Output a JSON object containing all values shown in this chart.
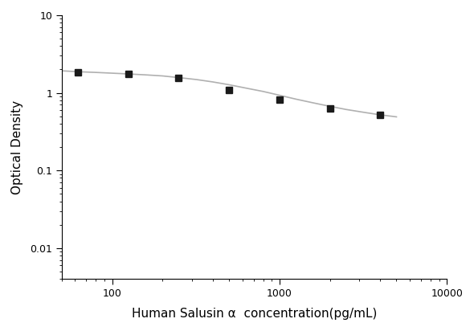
{
  "x_data": [
    62.5,
    125,
    250,
    500,
    1000,
    2000,
    4000
  ],
  "y_data": [
    1.85,
    1.75,
    1.55,
    1.1,
    0.82,
    0.63,
    0.52
  ],
  "curve_x": [
    50,
    62.5,
    80,
    100,
    125,
    160,
    200,
    250,
    320,
    400,
    500,
    630,
    800,
    1000,
    1250,
    1600,
    2000,
    2500,
    3200,
    4000,
    5000
  ],
  "curve_y": [
    1.92,
    1.87,
    1.83,
    1.79,
    1.75,
    1.7,
    1.65,
    1.57,
    1.48,
    1.38,
    1.27,
    1.15,
    1.04,
    0.93,
    0.83,
    0.74,
    0.67,
    0.61,
    0.56,
    0.52,
    0.49
  ],
  "xlabel": "Human Salusin α  concentration(pg/mL)",
  "ylabel": "Optical Density",
  "xlim": [
    50,
    10000
  ],
  "ylim": [
    0.004,
    10
  ],
  "marker_color": "#1a1a1a",
  "line_color": "#b0b0b0",
  "xlabel_fontsize": 11,
  "ylabel_fontsize": 11,
  "tick_fontsize": 9,
  "background_color": "#ffffff",
  "fig_width": 5.9,
  "fig_height": 4.12
}
